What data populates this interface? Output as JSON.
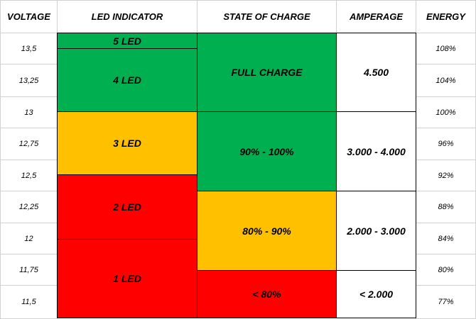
{
  "header": [
    "VOLTAGE",
    "LED INDICATOR",
    "STATE OF CHARGE",
    "AMPERAGE",
    "ENERGY"
  ],
  "voltage": [
    "13,5",
    "13,25",
    "13",
    "12,75",
    "12,5",
    "12,25",
    "12",
    "11,75",
    "11,5"
  ],
  "led": [
    "5 LED",
    "4 LED",
    "3 LED",
    "2 LED",
    "1 LED"
  ],
  "state": [
    "FULL CHARGE",
    "90% - 100%",
    "80% - 90%",
    "< 80%"
  ],
  "amperage": [
    "4.500",
    "3.000 - 4.000",
    "2.000 - 3.000",
    "< 2.000"
  ],
  "energy": [
    "108%",
    "104%",
    "100%",
    "96%",
    "92%",
    "88%",
    "84%",
    "80%",
    "77%"
  ]
}
